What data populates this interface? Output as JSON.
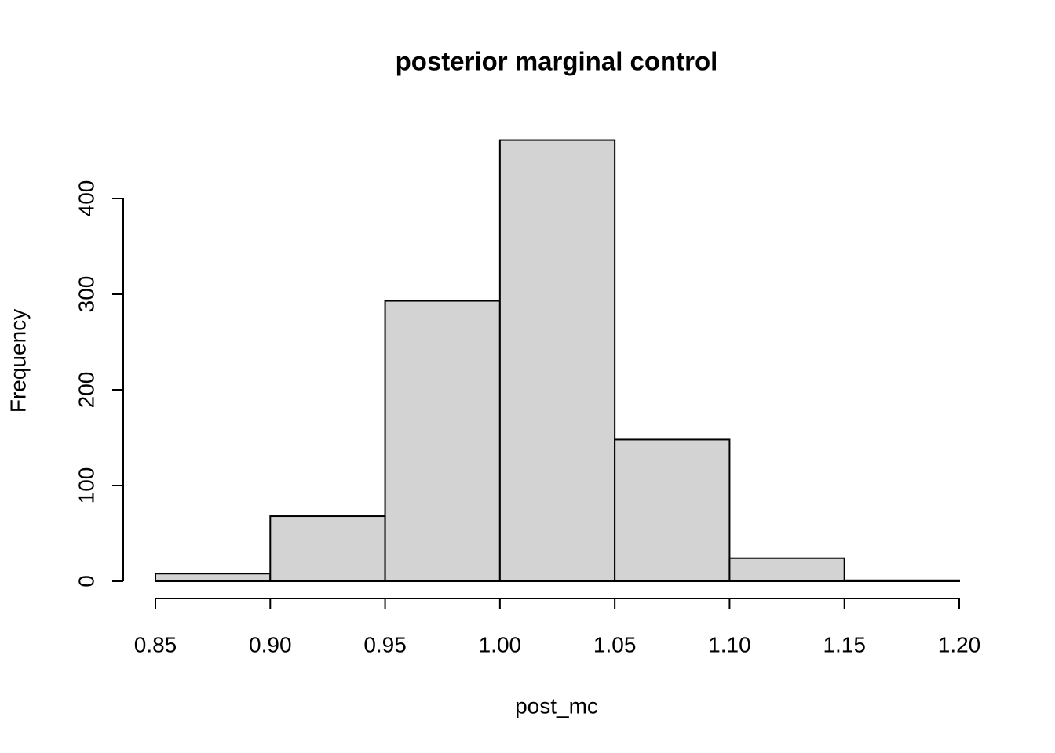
{
  "chart_data": {
    "type": "histogram",
    "title": "posterior marginal control",
    "x_label": "post_mc",
    "y_label": "Frequency",
    "bins": [
      0.85,
      0.9,
      0.95,
      1.0,
      1.05,
      1.1,
      1.15,
      1.2
    ],
    "values": [
      8,
      68,
      293,
      461,
      148,
      24,
      1
    ],
    "color": "#d3d3d3",
    "xlim": [
      0.85,
      1.2
    ],
    "xticks": [
      0.85,
      {
        "value": 0.9,
        "label": "0.90"
      },
      {
        "value": 0.95,
        "label": "0.95"
      },
      {
        "value": 1.0,
        "label": "1.00"
      },
      1.05,
      {
        "value": 1.1,
        "label": "1.10"
      },
      1.15,
      {
        "value": 1.2,
        "label": "1.20"
      }
    ],
    "ylim": [
      0,
      480
    ],
    "yticks": [
      0,
      100,
      200,
      300,
      400
    ]
  }
}
